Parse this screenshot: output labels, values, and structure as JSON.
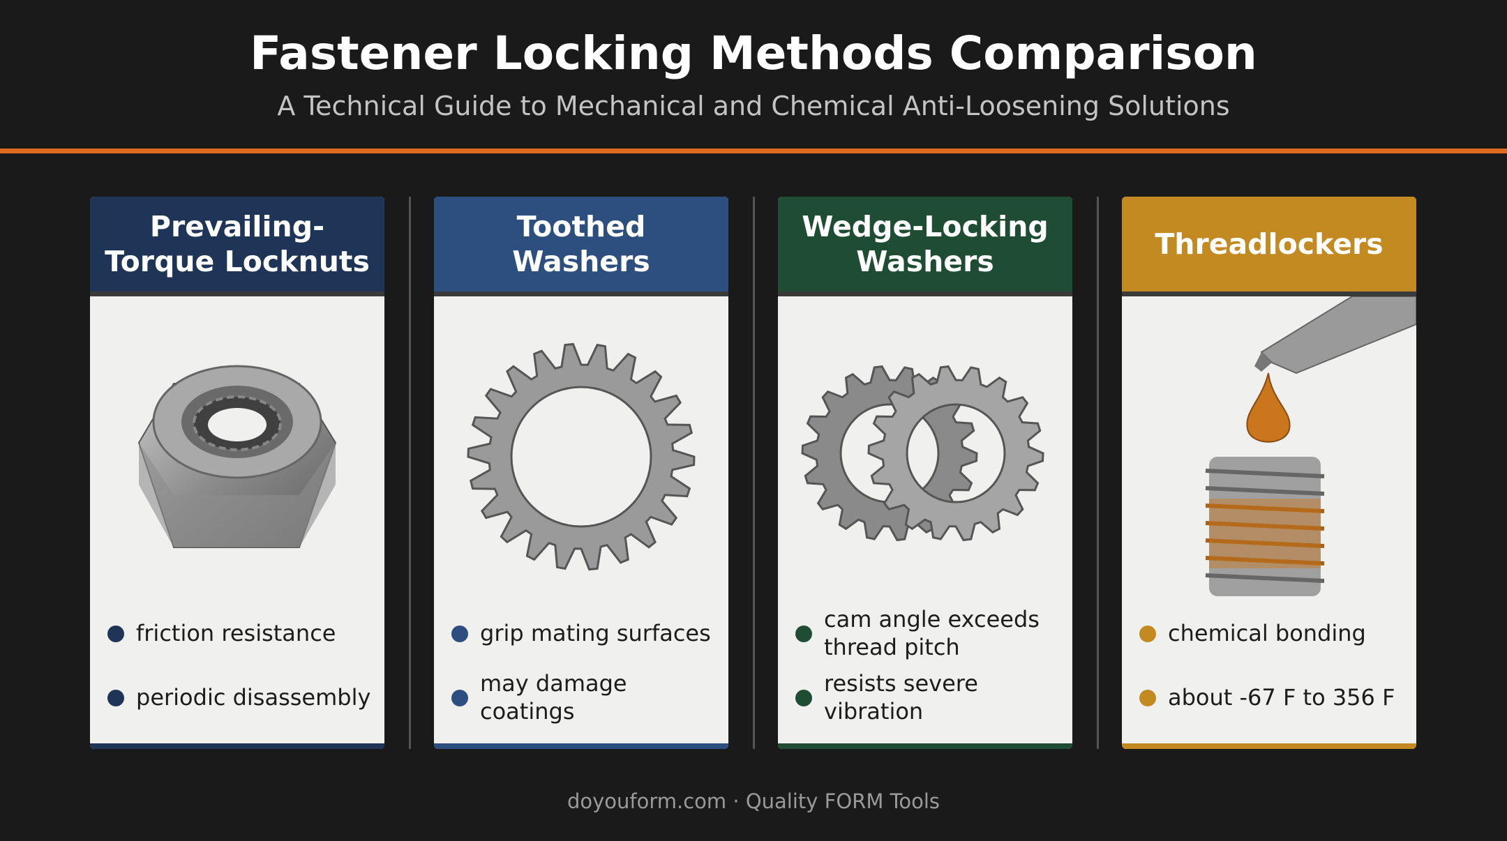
{
  "header": {
    "title": "Fastener Locking Methods Comparison",
    "subtitle": "A Technical Guide to Mechanical and Chemical Anti-Loosening Solutions"
  },
  "cards": [
    {
      "title": "Prevailing-Torque Locknuts",
      "bullets": [
        "friction resistance",
        "periodic disassembly"
      ]
    },
    {
      "title": "Toothed Washers",
      "bullets": [
        "grip mating surfaces",
        "may damage coatings"
      ]
    },
    {
      "title": "Wedge-Locking Washers",
      "bullets": [
        "cam angle exceeds thread pitch",
        "resists severe vibration"
      ]
    },
    {
      "title": "Threadlockers",
      "bullets": [
        "chemical bonding",
        "about -67 F to 356 F"
      ]
    }
  ],
  "footer": "doyouform.com · Quality FORM Tools"
}
